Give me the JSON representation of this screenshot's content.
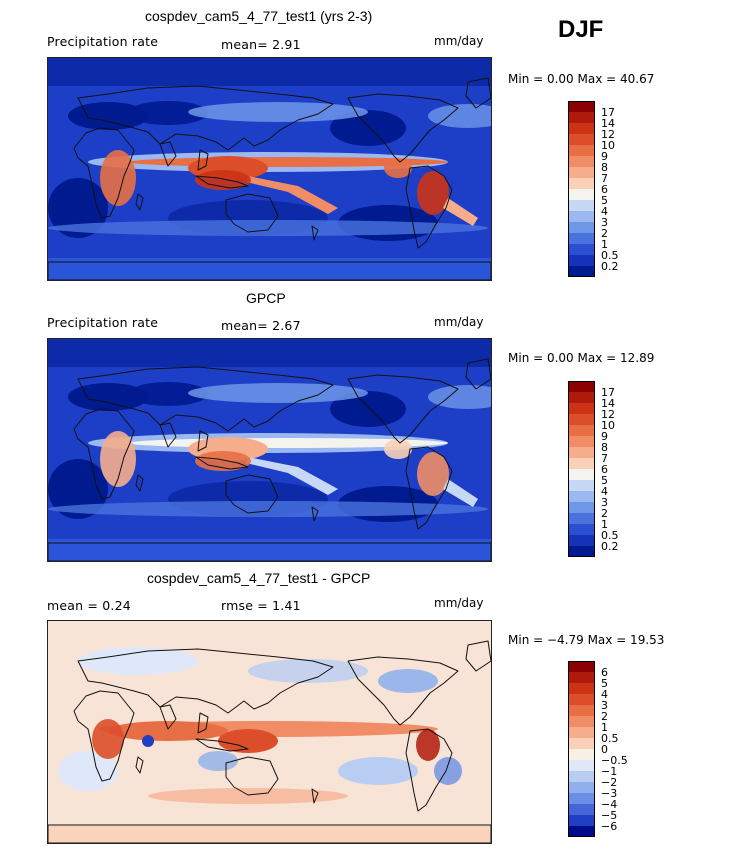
{
  "season": "DJF",
  "panels": [
    {
      "title": "cospdev_cam5_4_77_test1 (yrs 2-3)",
      "left_label": "Precipitation rate",
      "stat_text": "mean=   2.91",
      "units": "mm/day",
      "minmax": "Min =    0.00  Max =   40.67",
      "colorbar": {
        "levels": [
          "17",
          "14",
          "12",
          "10",
          "9",
          "8",
          "7",
          "6",
          "5",
          "4",
          "3",
          "2",
          "1",
          "0.5",
          "0.2"
        ],
        "colors": [
          "#8b0000",
          "#b01a0a",
          "#cc3316",
          "#dc4e2a",
          "#e86f45",
          "#f08d66",
          "#f6ad8c",
          "#fad0b8",
          "#f5f3ee",
          "#c6d8f5",
          "#9bb9f0",
          "#6f97e8",
          "#4a73de",
          "#2a4fd0",
          "#1532b8",
          "#001a8f"
        ]
      },
      "map": "precip_model"
    },
    {
      "title": "GPCP",
      "left_label": "Precipitation rate",
      "stat_text": "mean=   2.67",
      "units": "mm/day",
      "minmax": "Min =    0.00  Max =   12.89",
      "colorbar": {
        "levels": [
          "17",
          "14",
          "12",
          "10",
          "9",
          "8",
          "7",
          "6",
          "5",
          "4",
          "3",
          "2",
          "1",
          "0.5",
          "0.2"
        ],
        "colors": [
          "#8b0000",
          "#b01a0a",
          "#cc3316",
          "#dc4e2a",
          "#e86f45",
          "#f08d66",
          "#f6ad8c",
          "#fad0b8",
          "#f5f3ee",
          "#c6d8f5",
          "#9bb9f0",
          "#6f97e8",
          "#4a73de",
          "#2a4fd0",
          "#1532b8",
          "#001a8f"
        ]
      },
      "map": "precip_obs"
    },
    {
      "title": "cospdev_cam5_4_77_test1 - GPCP",
      "left_label": "mean =    0.24",
      "stat_text": "rmse =    1.41",
      "units": "mm/day",
      "minmax": "Min =  −4.79  Max =   19.53",
      "colorbar": {
        "levels": [
          "6",
          "5",
          "4",
          "3",
          "2",
          "1",
          "0.5",
          "0",
          "−0.5",
          "−1",
          "−2",
          "−3",
          "−4",
          "−5",
          "−6"
        ],
        "colors": [
          "#8b0000",
          "#b01a0a",
          "#cc3316",
          "#dc4e2a",
          "#e86f45",
          "#f08d66",
          "#f6ad8c",
          "#fad0b8",
          "#f8efe6",
          "#dfe8f8",
          "#b9cdf2",
          "#8fb0ec",
          "#6a8fe4",
          "#4466d8",
          "#2040c4",
          "#000a8a"
        ]
      },
      "map": "diff"
    }
  ]
}
